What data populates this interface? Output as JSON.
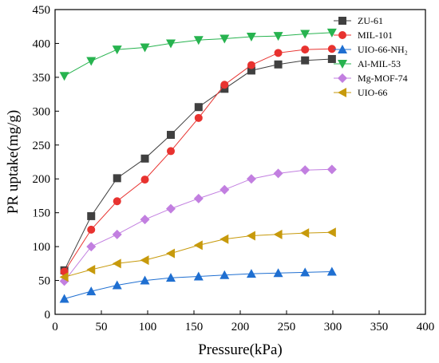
{
  "chart_data": {
    "type": "line",
    "xlabel": "Pressure(kPa)",
    "ylabel": "PR uptake(mg/g)",
    "xlim": [
      0,
      400
    ],
    "ylim": [
      0,
      450
    ],
    "xticks": [
      0,
      50,
      100,
      150,
      200,
      250,
      300,
      350,
      400
    ],
    "yticks": [
      0,
      50,
      100,
      150,
      200,
      250,
      300,
      350,
      400,
      450
    ],
    "grid": false,
    "legend_position": "top-right",
    "x": [
      10,
      39,
      67,
      97,
      125,
      155,
      183,
      212,
      241,
      270,
      299
    ],
    "series": [
      {
        "name": "ZU-61",
        "color": "#404040",
        "marker": "square",
        "values": [
          65,
          145,
          201,
          230,
          265,
          306,
          333,
          360,
          369,
          375,
          377
        ]
      },
      {
        "name": "MIL-101",
        "color": "#e8322f",
        "marker": "circle",
        "values": [
          63,
          125,
          167,
          199,
          241,
          290,
          339,
          368,
          386,
          391,
          392
        ]
      },
      {
        "name": "UIO-66-NH₂",
        "color": "#1f6fd1",
        "marker": "triangle-up",
        "values": [
          23,
          34,
          43,
          50,
          54,
          56,
          58,
          60,
          61,
          62,
          63
        ]
      },
      {
        "name": "Al-MIL-53",
        "color": "#27b34f",
        "marker": "triangle-down",
        "values": [
          352,
          374,
          391,
          394,
          400,
          405,
          407,
          410,
          411,
          414,
          416
        ]
      },
      {
        "name": "Mg-MOF-74",
        "color": "#c27fe0",
        "marker": "diamond",
        "values": [
          49,
          100,
          118,
          140,
          156,
          171,
          184,
          200,
          208,
          213,
          214
        ]
      },
      {
        "name": "UIO-66",
        "color": "#c79a0c",
        "marker": "triangle-left",
        "values": [
          55,
          66,
          75,
          80,
          90,
          102,
          111,
          116,
          118,
          120,
          121
        ]
      }
    ]
  }
}
